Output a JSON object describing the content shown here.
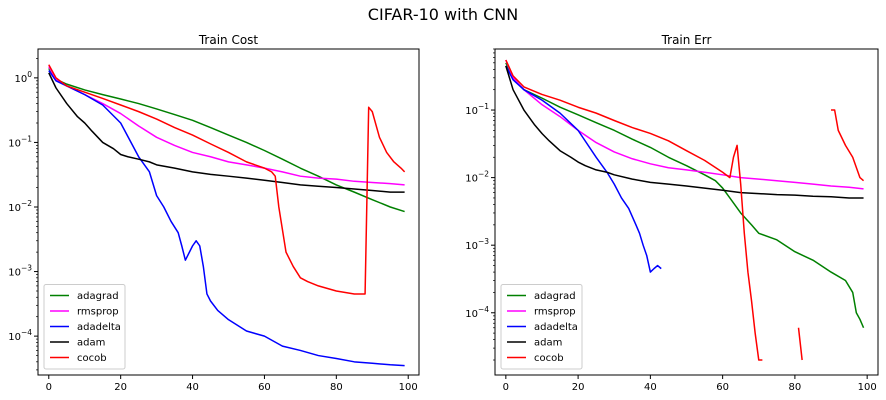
{
  "figure": {
    "title": "CIFAR-10 with CNN"
  },
  "chart_data": [
    {
      "type": "line",
      "title": "Train Cost",
      "xlabel": "",
      "ylabel": "",
      "yscale": "log",
      "xlim": [
        -3,
        103
      ],
      "ylim": [
        2.5e-05,
        2.8
      ],
      "x_ticks": [
        0,
        20,
        40,
        60,
        80,
        100
      ],
      "y_ticks": [
        {
          "value": 1,
          "label": "10^0"
        },
        {
          "value": 0.1,
          "label": "10^-1"
        },
        {
          "value": 0.01,
          "label": "10^-2"
        },
        {
          "value": 0.001,
          "label": "10^-3"
        },
        {
          "value": 0.0001,
          "label": "10^-4"
        }
      ],
      "grid": false,
      "legend": "lower-left",
      "series": [
        {
          "name": "adagrad",
          "color": "#008000",
          "x": [
            0,
            2,
            5,
            10,
            15,
            20,
            25,
            30,
            35,
            40,
            45,
            50,
            55,
            60,
            65,
            70,
            75,
            80,
            85,
            90,
            95,
            99
          ],
          "y": [
            1.4,
            0.95,
            0.8,
            0.65,
            0.55,
            0.47,
            0.4,
            0.33,
            0.27,
            0.22,
            0.17,
            0.13,
            0.1,
            0.075,
            0.055,
            0.04,
            0.03,
            0.022,
            0.017,
            0.013,
            0.01,
            0.0085
          ]
        },
        {
          "name": "rmsprop",
          "color": "#ff00ff",
          "x": [
            0,
            2,
            5,
            10,
            15,
            20,
            25,
            30,
            35,
            40,
            45,
            50,
            55,
            60,
            65,
            70,
            75,
            80,
            85,
            90,
            95,
            99
          ],
          "y": [
            1.5,
            0.95,
            0.75,
            0.55,
            0.4,
            0.28,
            0.18,
            0.12,
            0.09,
            0.07,
            0.06,
            0.05,
            0.045,
            0.04,
            0.035,
            0.03,
            0.028,
            0.027,
            0.025,
            0.024,
            0.023,
            0.022
          ]
        },
        {
          "name": "adadelta",
          "color": "#0000ff",
          "x": [
            0,
            2,
            5,
            10,
            15,
            20,
            25,
            28,
            30,
            32,
            34,
            36,
            37,
            38,
            40,
            41,
            42,
            43,
            44,
            45,
            47,
            50,
            55,
            60,
            65,
            70,
            75,
            80,
            85,
            90,
            95,
            99
          ],
          "y": [
            1.3,
            0.9,
            0.75,
            0.55,
            0.38,
            0.2,
            0.06,
            0.035,
            0.015,
            0.01,
            0.006,
            0.004,
            0.0025,
            0.0015,
            0.0025,
            0.003,
            0.0025,
            0.0012,
            0.00045,
            0.00035,
            0.00025,
            0.00018,
            0.00012,
            0.0001,
            7e-05,
            6e-05,
            5e-05,
            4.5e-05,
            4e-05,
            3.8e-05,
            3.6e-05,
            3.5e-05
          ]
        },
        {
          "name": "adam",
          "color": "#000000",
          "x": [
            0,
            2,
            5,
            8,
            10,
            12,
            15,
            18,
            20,
            22,
            25,
            28,
            30,
            35,
            40,
            45,
            50,
            55,
            60,
            65,
            70,
            75,
            80,
            85,
            90,
            95,
            99
          ],
          "y": [
            1.2,
            0.7,
            0.4,
            0.25,
            0.2,
            0.15,
            0.1,
            0.08,
            0.065,
            0.06,
            0.055,
            0.05,
            0.045,
            0.04,
            0.035,
            0.032,
            0.03,
            0.028,
            0.026,
            0.024,
            0.022,
            0.021,
            0.02,
            0.019,
            0.018,
            0.017,
            0.017
          ]
        },
        {
          "name": "cocob",
          "color": "#ff0000",
          "x": [
            0,
            2,
            5,
            10,
            15,
            20,
            25,
            30,
            35,
            40,
            45,
            50,
            55,
            60,
            62,
            63,
            64,
            66,
            68,
            70,
            72,
            75,
            80,
            85,
            88,
            89,
            90,
            92,
            94,
            96,
            98,
            99
          ],
          "y": [
            1.6,
            1.0,
            0.75,
            0.6,
            0.48,
            0.38,
            0.3,
            0.23,
            0.17,
            0.13,
            0.095,
            0.07,
            0.05,
            0.04,
            0.035,
            0.03,
            0.01,
            0.002,
            0.0012,
            0.0008,
            0.0007,
            0.0006,
            0.0005,
            0.00045,
            0.00045,
            0.35,
            0.3,
            0.12,
            0.07,
            0.05,
            0.04,
            0.035
          ]
        }
      ]
    },
    {
      "type": "line",
      "title": "Train Err",
      "xlabel": "",
      "ylabel": "",
      "yscale": "log",
      "xlim": [
        -3,
        103
      ],
      "ylim": [
        1.2e-05,
        0.8
      ],
      "x_ticks": [
        0,
        20,
        40,
        60,
        80,
        100
      ],
      "y_ticks": [
        {
          "value": 0.1,
          "label": "10^-1"
        },
        {
          "value": 0.01,
          "label": "10^-2"
        },
        {
          "value": 0.001,
          "label": "10^-3"
        },
        {
          "value": 0.0001,
          "label": "10^-4"
        }
      ],
      "grid": false,
      "legend": "lower-left",
      "series": [
        {
          "name": "adagrad",
          "color": "#008000",
          "x": [
            0,
            2,
            5,
            10,
            15,
            20,
            25,
            30,
            35,
            40,
            45,
            50,
            55,
            58,
            60,
            62,
            65,
            68,
            70,
            75,
            80,
            85,
            90,
            94,
            96,
            97,
            98,
            99
          ],
          "y": [
            0.5,
            0.3,
            0.2,
            0.15,
            0.11,
            0.085,
            0.065,
            0.05,
            0.037,
            0.028,
            0.02,
            0.015,
            0.011,
            0.009,
            0.007,
            0.005,
            0.003,
            0.002,
            0.0015,
            0.0012,
            0.0008,
            0.0006,
            0.0004,
            0.0003,
            0.0002,
            0.0001,
            8e-05,
            6e-05
          ]
        },
        {
          "name": "rmsprop",
          "color": "#ff00ff",
          "x": [
            0,
            2,
            5,
            10,
            15,
            20,
            25,
            30,
            35,
            40,
            45,
            50,
            55,
            60,
            65,
            70,
            75,
            80,
            85,
            90,
            95,
            99
          ],
          "y": [
            0.55,
            0.3,
            0.2,
            0.12,
            0.08,
            0.05,
            0.033,
            0.024,
            0.019,
            0.016,
            0.014,
            0.013,
            0.012,
            0.011,
            0.01,
            0.0095,
            0.009,
            0.0085,
            0.008,
            0.0075,
            0.0072,
            0.0068
          ]
        },
        {
          "name": "adadelta",
          "color": "#0000ff",
          "x": [
            0,
            2,
            5,
            10,
            15,
            20,
            25,
            28,
            30,
            32,
            34,
            36,
            37,
            38,
            39,
            40,
            41,
            42,
            43
          ],
          "y": [
            0.45,
            0.28,
            0.2,
            0.14,
            0.09,
            0.05,
            0.02,
            0.012,
            0.008,
            0.005,
            0.0035,
            0.002,
            0.0015,
            0.001,
            0.0007,
            0.0004,
            0.00045,
            0.0005,
            0.00045
          ]
        },
        {
          "name": "adam",
          "color": "#000000",
          "x": [
            0,
            2,
            5,
            8,
            10,
            12,
            15,
            18,
            20,
            22,
            25,
            28,
            30,
            35,
            40,
            45,
            50,
            55,
            60,
            65,
            70,
            75,
            80,
            85,
            90,
            95,
            99
          ],
          "y": [
            0.45,
            0.2,
            0.1,
            0.06,
            0.045,
            0.035,
            0.025,
            0.02,
            0.017,
            0.015,
            0.013,
            0.012,
            0.011,
            0.0095,
            0.0085,
            0.008,
            0.0075,
            0.007,
            0.0065,
            0.006,
            0.0058,
            0.0056,
            0.0055,
            0.0053,
            0.0052,
            0.005,
            0.005
          ]
        },
        {
          "name": "cocob",
          "color": "#ff0000",
          "x": [
            0,
            2,
            5,
            10,
            15,
            20,
            25,
            30,
            35,
            40,
            45,
            50,
            55,
            60,
            62,
            63,
            64,
            65,
            66,
            67,
            68,
            69,
            70,
            71,
            null,
            81,
            82,
            null,
            90,
            91,
            92,
            94,
            96,
            98,
            99
          ],
          "y": [
            0.55,
            0.32,
            0.22,
            0.17,
            0.14,
            0.11,
            0.09,
            0.07,
            0.055,
            0.045,
            0.035,
            0.025,
            0.018,
            0.012,
            0.01,
            0.02,
            0.03,
            0.008,
            0.0015,
            0.0004,
            0.00015,
            5e-05,
            2e-05,
            2e-05,
            null,
            6e-05,
            2e-05,
            null,
            0.1,
            0.1,
            0.05,
            0.03,
            0.02,
            0.01,
            0.009
          ]
        }
      ]
    }
  ]
}
